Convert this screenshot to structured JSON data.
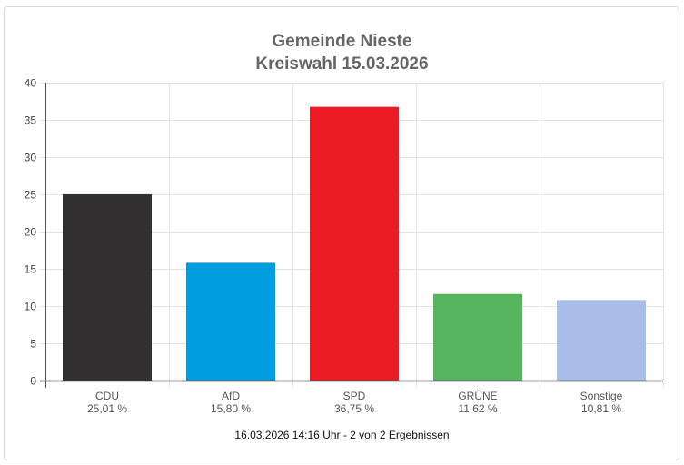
{
  "header": {
    "title_line1": "Gemeinde Nieste",
    "title_line2": "Kreiswahl 15.03.2026"
  },
  "footer": {
    "status": "16.03.2026 14:16 Uhr - 2 von 2 Ergebnissen"
  },
  "chart_data": {
    "type": "bar",
    "title": "Gemeinde Nieste\nKreiswahl 15.03.2026",
    "xlabel": "",
    "ylabel": "",
    "ylim": [
      0,
      40
    ],
    "yticks": [
      0,
      5,
      10,
      15,
      20,
      25,
      30,
      35,
      40
    ],
    "grid": true,
    "categories": [
      "CDU",
      "AfD",
      "SPD",
      "GRÜNE",
      "Sonstige"
    ],
    "values": [
      25.01,
      15.8,
      36.75,
      11.62,
      10.81
    ],
    "value_labels": [
      "25,01 %",
      "15,80 %",
      "36,75 %",
      "11,62 %",
      "10,81 %"
    ],
    "colors": [
      "#323031",
      "#009ee0",
      "#ec1c24",
      "#56b35e",
      "#a9bde6"
    ]
  }
}
